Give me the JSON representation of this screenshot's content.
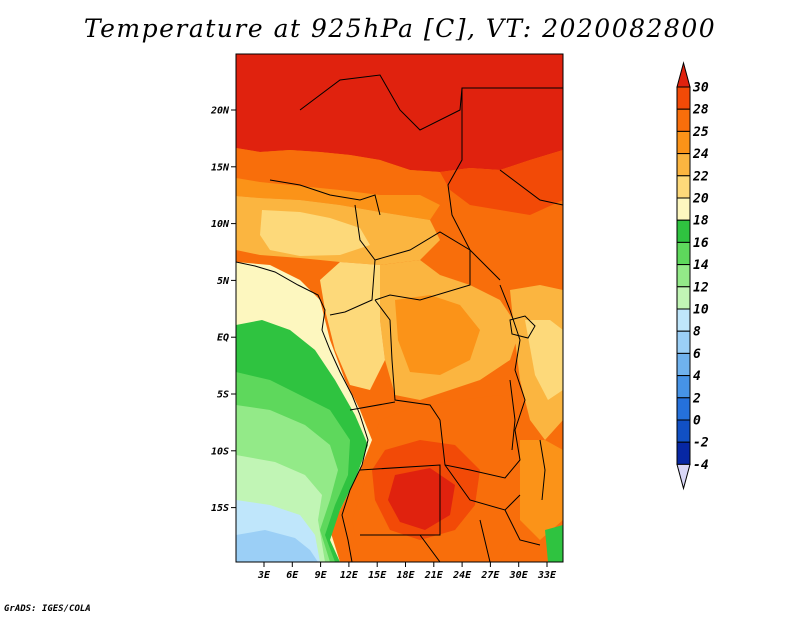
{
  "title": "Temperature at 925hPa [C], VT: 2020082800",
  "credit": "GrADS: IGES/COLA",
  "lat_labels": [
    "20N",
    "15N",
    "10N",
    "5N",
    "EQ",
    "5S",
    "10S",
    "15S"
  ],
  "lon_labels": [
    "3E",
    "6E",
    "9E",
    "12E",
    "15E",
    "18E",
    "21E",
    "24E",
    "27E",
    "30E",
    "33E"
  ],
  "colorbar": {
    "labels": [
      "30",
      "28",
      "25",
      "24",
      "22",
      "20",
      "18",
      "16",
      "14",
      "12",
      "10",
      "8",
      "6",
      "4",
      "2",
      "0",
      "-2",
      "-4"
    ],
    "colors": [
      "#e0220e",
      "#f24a07",
      "#f86e0b",
      "#fb9318",
      "#fbb540",
      "#fdd97a",
      "#fdf7bf",
      "#2fc340",
      "#5ed85c",
      "#93ea88",
      "#c1f5b5",
      "#bfe6fb",
      "#9bcff6",
      "#6fb2ee",
      "#4693e6",
      "#2571db",
      "#1150c4",
      "#0727a4",
      "#060a7a"
    ],
    "top_color": "#e0220e",
    "bottom_color": "#d9d7f7"
  }
}
